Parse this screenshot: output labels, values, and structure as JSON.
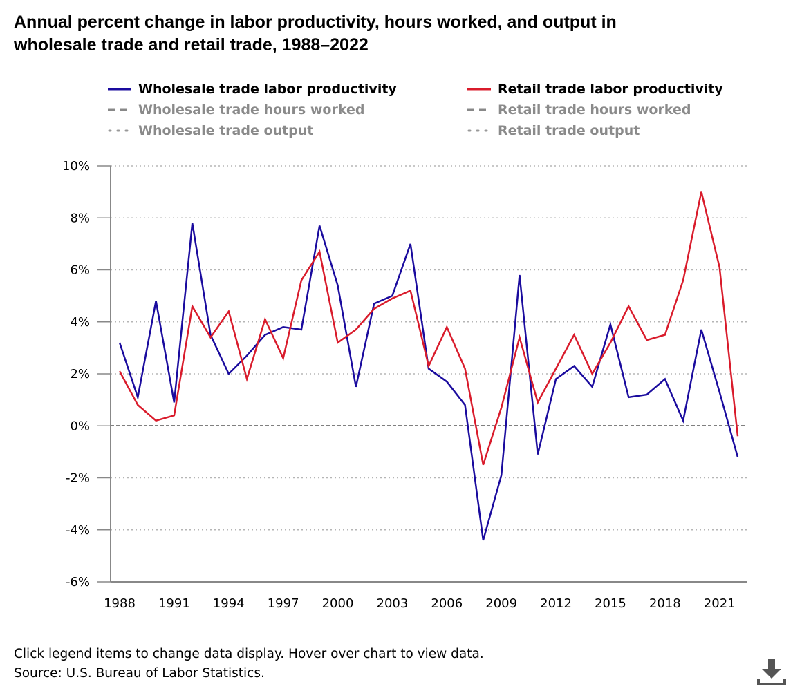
{
  "title_line1": "Annual percent change in labor productivity, hours worked, and output in",
  "title_line2": "wholesale trade and retail trade, 1988–2022",
  "legend": [
    {
      "label": "Wholesale trade labor productivity",
      "color": "#1a0b9e",
      "dash": "solid",
      "active": true
    },
    {
      "label": "Wholesale trade hours worked",
      "color": "#888888",
      "dash": "dashed",
      "active": false
    },
    {
      "label": "Wholesale trade output",
      "color": "#999999",
      "dash": "dotted",
      "active": false
    },
    {
      "label": "Retail trade labor productivity",
      "color": "#d91b2b",
      "dash": "solid",
      "active": true
    },
    {
      "label": "Retail trade hours worked",
      "color": "#888888",
      "dash": "dashed",
      "active": false
    },
    {
      "label": "Retail trade output",
      "color": "#999999",
      "dash": "dotted",
      "active": false
    }
  ],
  "footer": {
    "instructions": "Click legend items to change data display. Hover over chart to view data.",
    "source": "Source: U.S. Bureau of Labor Statistics."
  },
  "download_icon": "download-icon",
  "chart_data": {
    "type": "line",
    "title": "Annual percent change in labor productivity, hours worked, and output in wholesale trade and retail trade, 1988–2022",
    "xlabel": "",
    "ylabel": "",
    "x": [
      1988,
      1989,
      1990,
      1991,
      1992,
      1993,
      1994,
      1995,
      1996,
      1997,
      1998,
      1999,
      2000,
      2001,
      2002,
      2003,
      2004,
      2005,
      2006,
      2007,
      2008,
      2009,
      2010,
      2011,
      2012,
      2013,
      2014,
      2015,
      2016,
      2017,
      2018,
      2019,
      2020,
      2021,
      2022
    ],
    "x_ticks": [
      "1988",
      "1991",
      "1994",
      "1997",
      "2000",
      "2003",
      "2006",
      "2009",
      "2012",
      "2015",
      "2018",
      "2021"
    ],
    "ylim": [
      -6,
      10
    ],
    "y_ticks": [
      "10%",
      "8%",
      "6%",
      "4%",
      "2%",
      "0%",
      "-2%",
      "-4%",
      "-6%"
    ],
    "grid": true,
    "series": [
      {
        "name": "Wholesale trade labor productivity",
        "color": "#1a0b9e",
        "values": [
          3.2,
          1.1,
          4.8,
          0.9,
          7.8,
          3.5,
          2.0,
          2.7,
          3.5,
          3.8,
          3.7,
          7.7,
          5.4,
          1.5,
          4.7,
          5.0,
          7.0,
          2.2,
          1.7,
          0.8,
          -4.4,
          -1.9,
          5.8,
          -1.1,
          1.8,
          2.3,
          1.5,
          3.9,
          1.1,
          1.2,
          1.8,
          0.2,
          3.7,
          1.3,
          -1.2
        ]
      },
      {
        "name": "Retail trade labor productivity",
        "color": "#d91b2b",
        "values": [
          2.1,
          0.8,
          0.2,
          0.4,
          4.6,
          3.4,
          4.4,
          1.8,
          4.1,
          2.6,
          5.6,
          6.7,
          3.2,
          3.7,
          4.5,
          4.9,
          5.2,
          2.3,
          3.8,
          2.2,
          -1.5,
          0.7,
          3.4,
          0.9,
          2.2,
          3.5,
          2.0,
          3.2,
          4.6,
          3.3,
          3.5,
          5.6,
          9.0,
          6.1,
          -0.4
        ]
      }
    ]
  }
}
